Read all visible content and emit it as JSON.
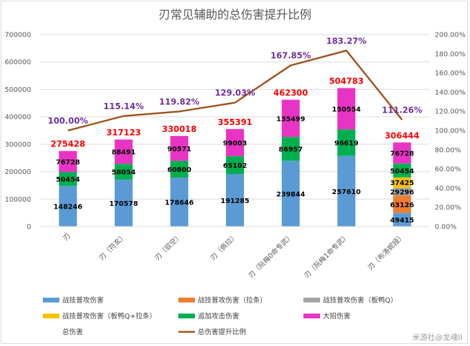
{
  "chart_data": {
    "type": "bar",
    "title": "刃常见辅助的总伤害提升比例",
    "categories": [
      "刃",
      "刃（符玄）",
      "刃（驭空）",
      "刃（佩拉）",
      "刃（阮梅0命专武）",
      "刃（阮梅1命专武）",
      "刃（布洛妮娅）"
    ],
    "series": [
      {
        "name": "战技普攻伤害",
        "color": "#5b9bd5",
        "values": [
          148246,
          170578,
          178646,
          191285,
          239844,
          257610,
          49415
        ]
      },
      {
        "name": "战技普攻伤害（拉条）",
        "color": "#ed7d31",
        "values": [
          0,
          0,
          0,
          0,
          0,
          0,
          63126
        ]
      },
      {
        "name": "战技普攻伤害（板鸭Q）",
        "color": "#a5a5a5",
        "values": [
          0,
          0,
          0,
          0,
          0,
          0,
          29296
        ]
      },
      {
        "name": "战技普攻伤害（板鸭Q+拉条）",
        "color": "#ffc000",
        "values": [
          0,
          0,
          0,
          0,
          0,
          0,
          37425
        ]
      },
      {
        "name": "追加攻击伤害",
        "color": "#00b050",
        "values": [
          50454,
          58054,
          60800,
          65102,
          86957,
          96619,
          50454
        ]
      },
      {
        "name": "大招伤害",
        "color": "#e834c4",
        "values": [
          76728,
          88491,
          90571,
          99003,
          135499,
          150554,
          76728
        ]
      }
    ],
    "totals": {
      "name": "总伤害",
      "values": [
        275428,
        317123,
        330018,
        355391,
        462300,
        504783,
        306444
      ]
    },
    "ratio": {
      "name": "总伤害提升比例",
      "color": "#a0521d",
      "values": [
        100.0,
        115.14,
        119.82,
        129.03,
        167.85,
        183.27,
        111.26
      ],
      "labels": [
        "100.00%",
        "115.14%",
        "119.82%",
        "129.03%",
        "167.85%",
        "183.27%",
        "111.26%"
      ]
    },
    "ylim": [
      0,
      700000
    ],
    "yticks": [
      "0",
      "100000",
      "200000",
      "300000",
      "400000",
      "500000",
      "600000",
      "700000"
    ],
    "y2lim": [
      0,
      200
    ],
    "y2ticks": [
      "0.00%",
      "20.00%",
      "40.00%",
      "60.00%",
      "80.00%",
      "100.00%",
      "120.00%",
      "140.00%",
      "160.00%",
      "180.00%",
      "200.00%"
    ],
    "grid": true,
    "legend": "bottom",
    "watermark": "米游社@龙魂II"
  }
}
